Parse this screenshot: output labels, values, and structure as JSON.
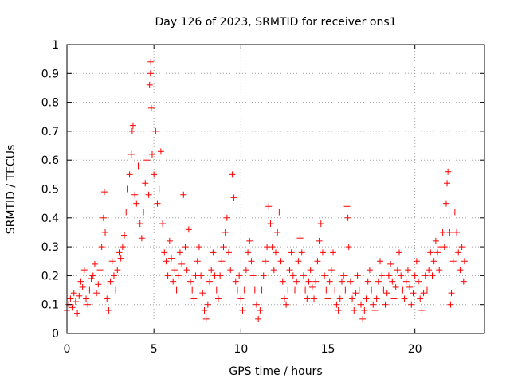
{
  "chart_data": {
    "type": "scatter",
    "title": "Day 126 of 2023, SRMTID for receiver ons1",
    "xlabel": "GPS time / hours",
    "ylabel": "SRMTID / TECUs",
    "xlim": [
      0,
      24
    ],
    "ylim": [
      0,
      1
    ],
    "xticks": [
      0,
      5,
      10,
      15,
      20
    ],
    "xtick_labels": [
      "0",
      "5",
      "10",
      "15",
      "20"
    ],
    "yticks": [
      0,
      0.1,
      0.2,
      0.3,
      0.4,
      0.5,
      0.6,
      0.7,
      0.8,
      0.9,
      1
    ],
    "ytick_labels": [
      "0",
      "0.1",
      "0.2",
      "0.3",
      "0.4",
      "0.5",
      "0.6",
      "0.7",
      "0.8",
      "0.9",
      "1"
    ],
    "grid": true,
    "marker": "+",
    "marker_color": "#ff0000",
    "series": [
      {
        "name": "SRMTID",
        "points": [
          [
            0.0,
            0.08
          ],
          [
            0.1,
            0.1
          ],
          [
            0.2,
            0.12
          ],
          [
            0.3,
            0.09
          ],
          [
            0.4,
            0.14
          ],
          [
            0.5,
            0.11
          ],
          [
            0.6,
            0.07
          ],
          [
            0.7,
            0.13
          ],
          [
            0.8,
            0.18
          ],
          [
            0.9,
            0.16
          ],
          [
            1.0,
            0.22
          ],
          [
            1.1,
            0.12
          ],
          [
            1.2,
            0.1
          ],
          [
            1.3,
            0.15
          ],
          [
            1.4,
            0.19
          ],
          [
            1.5,
            0.2
          ],
          [
            1.6,
            0.24
          ],
          [
            1.7,
            0.14
          ],
          [
            1.8,
            0.17
          ],
          [
            1.9,
            0.22
          ],
          [
            2.0,
            0.3
          ],
          [
            2.1,
            0.4
          ],
          [
            2.15,
            0.49
          ],
          [
            2.2,
            0.35
          ],
          [
            2.3,
            0.12
          ],
          [
            2.4,
            0.08
          ],
          [
            2.5,
            0.18
          ],
          [
            2.6,
            0.25
          ],
          [
            2.7,
            0.2
          ],
          [
            2.8,
            0.15
          ],
          [
            2.9,
            0.22
          ],
          [
            3.0,
            0.28
          ],
          [
            3.1,
            0.26
          ],
          [
            3.2,
            0.3
          ],
          [
            3.3,
            0.34
          ],
          [
            3.4,
            0.42
          ],
          [
            3.5,
            0.5
          ],
          [
            3.6,
            0.55
          ],
          [
            3.7,
            0.62
          ],
          [
            3.75,
            0.7
          ],
          [
            3.8,
            0.72
          ],
          [
            3.9,
            0.48
          ],
          [
            4.0,
            0.45
          ],
          [
            4.1,
            0.58
          ],
          [
            4.2,
            0.38
          ],
          [
            4.3,
            0.33
          ],
          [
            4.4,
            0.42
          ],
          [
            4.5,
            0.52
          ],
          [
            4.6,
            0.6
          ],
          [
            4.7,
            0.48
          ],
          [
            4.75,
            0.86
          ],
          [
            4.8,
            0.9
          ],
          [
            4.82,
            0.94
          ],
          [
            4.85,
            0.78
          ],
          [
            4.9,
            0.62
          ],
          [
            5.0,
            0.55
          ],
          [
            5.1,
            0.7
          ],
          [
            5.2,
            0.45
          ],
          [
            5.3,
            0.5
          ],
          [
            5.4,
            0.63
          ],
          [
            5.5,
            0.38
          ],
          [
            5.6,
            0.28
          ],
          [
            5.7,
            0.25
          ],
          [
            5.8,
            0.2
          ],
          [
            5.9,
            0.32
          ],
          [
            6.0,
            0.26
          ],
          [
            6.1,
            0.18
          ],
          [
            6.2,
            0.22
          ],
          [
            6.3,
            0.15
          ],
          [
            6.4,
            0.2
          ],
          [
            6.5,
            0.28
          ],
          [
            6.6,
            0.24
          ],
          [
            6.7,
            0.48
          ],
          [
            6.8,
            0.3
          ],
          [
            6.9,
            0.22
          ],
          [
            7.0,
            0.36
          ],
          [
            7.1,
            0.18
          ],
          [
            7.2,
            0.15
          ],
          [
            7.3,
            0.12
          ],
          [
            7.4,
            0.2
          ],
          [
            7.5,
            0.25
          ],
          [
            7.6,
            0.3
          ],
          [
            7.7,
            0.2
          ],
          [
            7.8,
            0.14
          ],
          [
            7.9,
            0.08
          ],
          [
            8.0,
            0.05
          ],
          [
            8.1,
            0.1
          ],
          [
            8.2,
            0.18
          ],
          [
            8.3,
            0.22
          ],
          [
            8.4,
            0.28
          ],
          [
            8.5,
            0.2
          ],
          [
            8.6,
            0.15
          ],
          [
            8.7,
            0.12
          ],
          [
            8.8,
            0.2
          ],
          [
            8.9,
            0.25
          ],
          [
            9.0,
            0.3
          ],
          [
            9.1,
            0.35
          ],
          [
            9.2,
            0.4
          ],
          [
            9.3,
            0.28
          ],
          [
            9.4,
            0.22
          ],
          [
            9.5,
            0.55
          ],
          [
            9.55,
            0.58
          ],
          [
            9.6,
            0.47
          ],
          [
            9.7,
            0.18
          ],
          [
            9.8,
            0.15
          ],
          [
            9.9,
            0.2
          ],
          [
            10.0,
            0.12
          ],
          [
            10.1,
            0.08
          ],
          [
            10.2,
            0.15
          ],
          [
            10.3,
            0.22
          ],
          [
            10.4,
            0.28
          ],
          [
            10.5,
            0.32
          ],
          [
            10.6,
            0.25
          ],
          [
            10.7,
            0.2
          ],
          [
            10.8,
            0.15
          ],
          [
            10.9,
            0.1
          ],
          [
            11.0,
            0.05
          ],
          [
            11.1,
            0.08
          ],
          [
            11.2,
            0.15
          ],
          [
            11.3,
            0.2
          ],
          [
            11.4,
            0.25
          ],
          [
            11.5,
            0.3
          ],
          [
            11.6,
            0.44
          ],
          [
            11.7,
            0.38
          ],
          [
            11.8,
            0.3
          ],
          [
            11.9,
            0.22
          ],
          [
            12.0,
            0.28
          ],
          [
            12.1,
            0.35
          ],
          [
            12.2,
            0.42
          ],
          [
            12.3,
            0.25
          ],
          [
            12.4,
            0.18
          ],
          [
            12.5,
            0.12
          ],
          [
            12.6,
            0.1
          ],
          [
            12.7,
            0.15
          ],
          [
            12.8,
            0.22
          ],
          [
            12.9,
            0.28
          ],
          [
            13.0,
            0.2
          ],
          [
            13.1,
            0.15
          ],
          [
            13.2,
            0.18
          ],
          [
            13.3,
            0.25
          ],
          [
            13.4,
            0.33
          ],
          [
            13.5,
            0.28
          ],
          [
            13.6,
            0.2
          ],
          [
            13.7,
            0.15
          ],
          [
            13.8,
            0.12
          ],
          [
            13.9,
            0.18
          ],
          [
            14.0,
            0.22
          ],
          [
            14.1,
            0.16
          ],
          [
            14.2,
            0.12
          ],
          [
            14.3,
            0.18
          ],
          [
            14.4,
            0.25
          ],
          [
            14.5,
            0.32
          ],
          [
            14.6,
            0.38
          ],
          [
            14.7,
            0.28
          ],
          [
            14.8,
            0.2
          ],
          [
            14.9,
            0.15
          ],
          [
            15.0,
            0.12
          ],
          [
            15.1,
            0.18
          ],
          [
            15.2,
            0.22
          ],
          [
            15.3,
            0.28
          ],
          [
            15.4,
            0.15
          ],
          [
            15.5,
            0.1
          ],
          [
            15.6,
            0.08
          ],
          [
            15.7,
            0.12
          ],
          [
            15.8,
            0.18
          ],
          [
            15.9,
            0.2
          ],
          [
            16.0,
            0.15
          ],
          [
            16.1,
            0.44
          ],
          [
            16.15,
            0.4
          ],
          [
            16.2,
            0.3
          ],
          [
            16.3,
            0.18
          ],
          [
            16.4,
            0.12
          ],
          [
            16.5,
            0.08
          ],
          [
            16.6,
            0.14
          ],
          [
            16.7,
            0.2
          ],
          [
            16.8,
            0.15
          ],
          [
            16.9,
            0.1
          ],
          [
            17.0,
            0.05
          ],
          [
            17.1,
            0.08
          ],
          [
            17.2,
            0.12
          ],
          [
            17.3,
            0.18
          ],
          [
            17.4,
            0.22
          ],
          [
            17.5,
            0.15
          ],
          [
            17.6,
            0.1
          ],
          [
            17.7,
            0.08
          ],
          [
            17.8,
            0.12
          ],
          [
            17.9,
            0.18
          ],
          [
            18.0,
            0.25
          ],
          [
            18.1,
            0.2
          ],
          [
            18.2,
            0.15
          ],
          [
            18.3,
            0.1
          ],
          [
            18.4,
            0.14
          ],
          [
            18.5,
            0.2
          ],
          [
            18.6,
            0.24
          ],
          [
            18.7,
            0.18
          ],
          [
            18.8,
            0.12
          ],
          [
            18.9,
            0.16
          ],
          [
            19.0,
            0.22
          ],
          [
            19.1,
            0.28
          ],
          [
            19.2,
            0.2
          ],
          [
            19.3,
            0.15
          ],
          [
            19.4,
            0.12
          ],
          [
            19.5,
            0.18
          ],
          [
            19.6,
            0.22
          ],
          [
            19.7,
            0.16
          ],
          [
            19.8,
            0.1
          ],
          [
            19.9,
            0.14
          ],
          [
            20.0,
            0.2
          ],
          [
            20.1,
            0.25
          ],
          [
            20.2,
            0.18
          ],
          [
            20.3,
            0.12
          ],
          [
            20.4,
            0.08
          ],
          [
            20.5,
            0.14
          ],
          [
            20.6,
            0.2
          ],
          [
            20.7,
            0.15
          ],
          [
            20.8,
            0.22
          ],
          [
            20.9,
            0.28
          ],
          [
            21.0,
            0.2
          ],
          [
            21.1,
            0.25
          ],
          [
            21.2,
            0.32
          ],
          [
            21.3,
            0.28
          ],
          [
            21.4,
            0.22
          ],
          [
            21.5,
            0.3
          ],
          [
            21.6,
            0.35
          ],
          [
            21.7,
            0.3
          ],
          [
            21.8,
            0.45
          ],
          [
            21.85,
            0.52
          ],
          [
            21.9,
            0.56
          ],
          [
            22.0,
            0.35
          ],
          [
            22.05,
            0.1
          ],
          [
            22.1,
            0.14
          ],
          [
            22.2,
            0.25
          ],
          [
            22.3,
            0.42
          ],
          [
            22.4,
            0.35
          ],
          [
            22.5,
            0.28
          ],
          [
            22.6,
            0.22
          ],
          [
            22.7,
            0.3
          ],
          [
            22.8,
            0.18
          ],
          [
            22.85,
            0.25
          ]
        ]
      }
    ]
  }
}
